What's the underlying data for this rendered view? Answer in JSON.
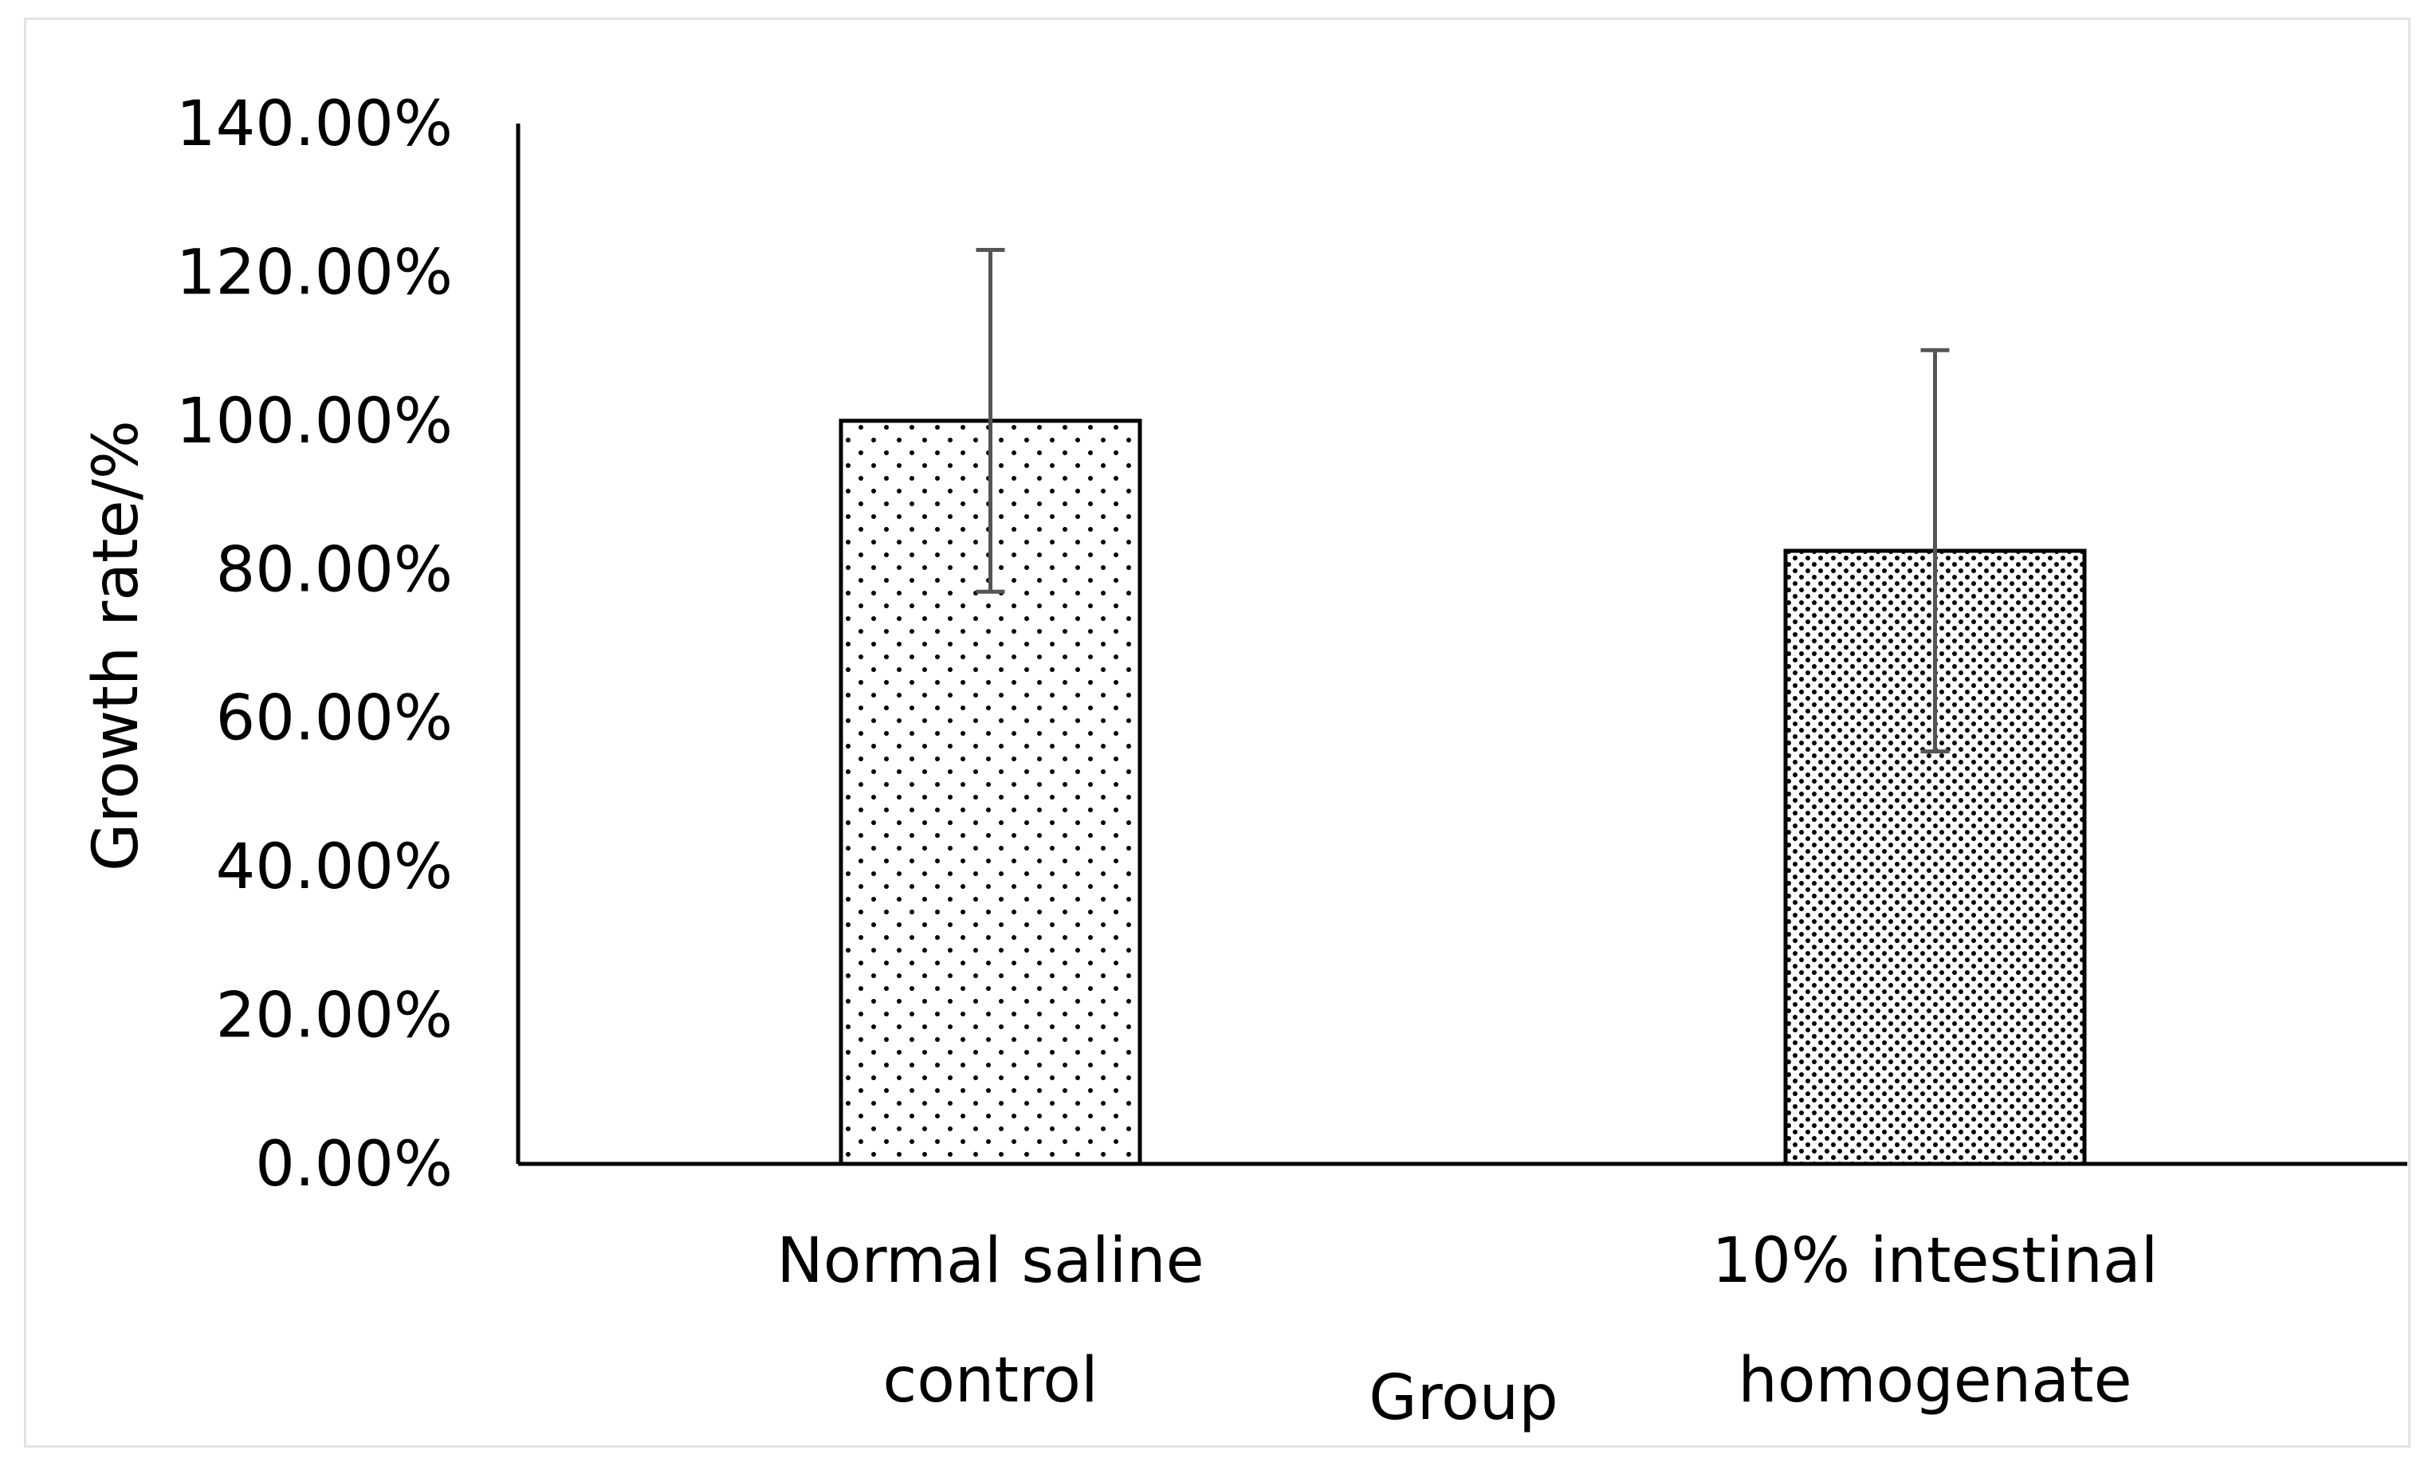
{
  "chart_data": {
    "type": "bar",
    "title": "",
    "xlabel": "Group",
    "ylabel": "Growth rate/%",
    "ylim": [
      0,
      1.4
    ],
    "yticks": [
      0,
      0.2,
      0.4,
      0.6,
      0.8,
      1.0,
      1.2,
      1.4
    ],
    "ytick_labels": [
      "0.00%",
      "20.00%",
      "40.00%",
      "60.00%",
      "80.00%",
      "100.00%",
      "120.00%",
      "140.00%"
    ],
    "categories": [
      [
        "Normal saline",
        "control"
      ],
      [
        "10% intestinal",
        "homogenate"
      ]
    ],
    "values": [
      1.0,
      0.825
    ],
    "error": [
      0.23,
      0.27
    ],
    "patterns": [
      "sparse-dots",
      "dense-dots"
    ],
    "grid": false,
    "legend": "none"
  },
  "colors": {
    "axis": "#000000",
    "bar_fill": "#ffffff",
    "bar_stroke": "#000000",
    "dots": "#000000",
    "error_bar": "#555555",
    "frame": "#e3e3e3"
  }
}
